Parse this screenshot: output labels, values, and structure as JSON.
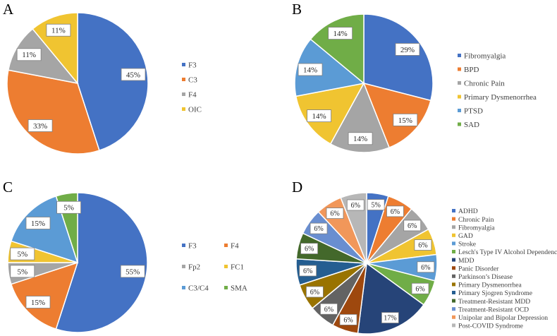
{
  "chart_data": [
    {
      "panel": "A",
      "type": "pie",
      "labels": [
        "F3",
        "C3",
        "F4",
        "OIC"
      ],
      "values": [
        45,
        33,
        11,
        11
      ],
      "data_labels": [
        "45%",
        "33%",
        "11%",
        "11%"
      ],
      "colors": [
        "#4472C4",
        "#ED7D31",
        "#A5A5A5",
        "#F0C431"
      ],
      "legend": {
        "placement": "right",
        "columns": 1
      }
    },
    {
      "panel": "B",
      "type": "pie",
      "labels": [
        "Fibromyalgia",
        "BPD",
        "Chronic Pain",
        "Primary Dysmenorrhea",
        "PTSD",
        "SAD"
      ],
      "values": [
        29,
        15,
        14,
        14,
        14,
        14
      ],
      "data_labels": [
        "29%",
        "15%",
        "14%",
        "14%",
        "14%",
        "14%"
      ],
      "colors": [
        "#4472C4",
        "#ED7D31",
        "#A5A5A5",
        "#F0C431",
        "#5B9BD5",
        "#70AD47"
      ],
      "legend": {
        "placement": "right",
        "columns": 1
      }
    },
    {
      "panel": "C",
      "type": "pie",
      "labels": [
        "F3",
        "F4",
        "Fp2",
        "FC1",
        "C3/C4",
        "SMA"
      ],
      "values": [
        55,
        15,
        5,
        5,
        15,
        5
      ],
      "data_labels": [
        "55%",
        "15%",
        "5%",
        "5%",
        "15%",
        "5%"
      ],
      "colors": [
        "#4472C4",
        "#ED7D31",
        "#A5A5A5",
        "#F0C431",
        "#5B9BD5",
        "#70AD47"
      ],
      "legend": {
        "placement": "right",
        "columns": 2
      }
    },
    {
      "panel": "D",
      "type": "pie",
      "labels": [
        "ADHD",
        "Chronic Pain",
        "Fibromyalgia",
        "GAD",
        "Stroke",
        "Lesch's Type IV Alcohol Dependence",
        "MDD",
        "Panic Disorder",
        "Parkinson’s Disease",
        "Primary Dysmenorrhea",
        "Primary Sjogren Syndrome",
        "Treatment-Resistant MDD",
        "Treatment-Resistant OCD",
        "Unipolar and Bipolar Depression",
        "Post-COVID Syndrome"
      ],
      "values": [
        5,
        6,
        6,
        6,
        6,
        6,
        17,
        6,
        6,
        6,
        6,
        6,
        6,
        6,
        6
      ],
      "data_labels": [
        "5%",
        "6%",
        "6%",
        "6%",
        "6%",
        "6%",
        "17%",
        "6%",
        "6%",
        "6%",
        "6%",
        "6%",
        "6%",
        "6%",
        "6%"
      ],
      "colors": [
        "#4472C4",
        "#ED7D31",
        "#A5A5A5",
        "#F0C431",
        "#5B9BD5",
        "#70AD47",
        "#264478",
        "#9E480E",
        "#636363",
        "#997300",
        "#255E91",
        "#43682B",
        "#698ED0",
        "#F1975A",
        "#B7B7B7"
      ],
      "legend": {
        "placement": "right",
        "columns": 1
      }
    }
  ]
}
